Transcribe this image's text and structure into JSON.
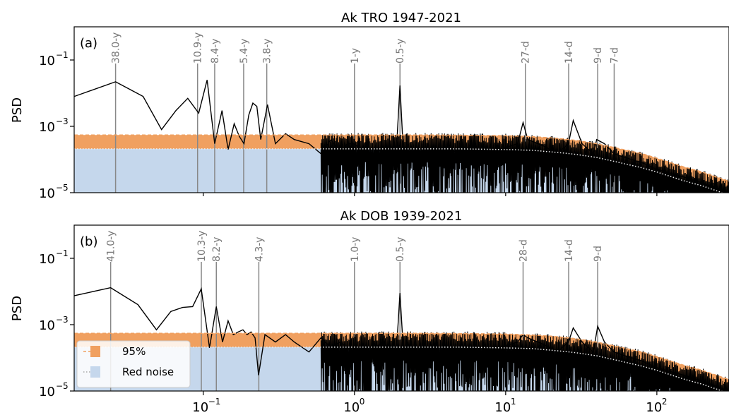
{
  "chart_data": [
    {
      "type": "line",
      "panel_label": "(a)",
      "title": "Ak TRO 1947-2021",
      "ylabel": "PSD",
      "xscale": "log",
      "yscale": "log",
      "xlim": [
        0.014,
        300
      ],
      "ylim": [
        1e-05,
        1
      ],
      "y_ticks": [
        {
          "value": 0.1,
          "label": "10",
          "exp": "−1"
        },
        {
          "value": 0.001,
          "label": "10",
          "exp": "−3"
        },
        {
          "value": 1e-05,
          "label": "10",
          "exp": "−5"
        }
      ],
      "series": [
        {
          "role": "spectrum",
          "color": "#000000",
          "x": [
            0.0135,
            0.0263,
            0.04,
            0.053,
            0.066,
            0.079,
            0.0933,
            0.106,
            0.119,
            0.133,
            0.146,
            0.16,
            0.173,
            0.186,
            0.2,
            0.213,
            0.226,
            0.24,
            0.266,
            0.3,
            0.35,
            0.4,
            0.5,
            0.6,
            0.7,
            0.8,
            0.9,
            1.0,
            1.2,
            1.5,
            1.9,
            2.0,
            2.1,
            2.5,
            3.0,
            4.0,
            5.0,
            7.0,
            9.0,
            12.0,
            13.04,
            14.0,
            18.0,
            22.0,
            26.0,
            28.0,
            32.0,
            38.0,
            40.0,
            45.0,
            52.0,
            60.0,
            80.0,
            100.0,
            150.0,
            200.0,
            300.0
          ],
          "y": [
            0.0075,
            0.022,
            0.008,
            0.0008,
            0.003,
            0.007,
            0.0025,
            0.025,
            0.0003,
            0.003,
            0.0002,
            0.0012,
            0.0005,
            0.0003,
            0.0022,
            0.005,
            0.004,
            0.0004,
            0.0045,
            0.0003,
            0.0006,
            0.0004,
            0.0003,
            0.00015,
            0.0004,
            0.00015,
            0.0003,
            0.0003,
            0.00012,
            0.0002,
            0.00025,
            0.017,
            0.0002,
            0.00015,
            0.0002,
            0.00015,
            0.0002,
            0.00012,
            0.0002,
            0.0003,
            0.0013,
            0.0004,
            0.00025,
            0.00015,
            0.0003,
            0.0015,
            0.0003,
            0.00015,
            0.0004,
            0.0003,
            0.00015,
            0.00012,
            8e-05,
            5e-05,
            3e-05,
            2e-05,
            1e-05
          ]
        },
        {
          "name": "95%",
          "color": "#f0a060",
          "x": [
            0.014,
            1,
            3,
            5,
            10,
            15,
            20,
            25,
            30,
            40,
            50,
            60,
            80,
            100,
            150,
            200,
            300
          ],
          "y": [
            0.00055,
            0.00055,
            0.00055,
            0.00054,
            0.00052,
            0.00049,
            0.00045,
            0.00041,
            0.00037,
            0.0003,
            0.00024,
            0.0002,
            0.00015,
            0.00011,
            6e-05,
            4.2e-05,
            2.2e-05
          ]
        },
        {
          "name": "Red noise",
          "color": "#c5d7ec",
          "x": [
            0.014,
            1,
            3,
            5,
            10,
            15,
            20,
            25,
            30,
            40,
            50,
            60,
            80,
            100,
            150,
            200,
            300
          ],
          "y": [
            0.00021,
            0.00021,
            0.00021,
            0.00021,
            0.0002,
            0.00019,
            0.00017,
            0.000155,
            0.00014,
            0.000115,
            9.2e-05,
            7.6e-05,
            5.6e-05,
            4.2e-05,
            2.3e-05,
            1.6e-05,
            8.5e-06
          ]
        }
      ],
      "period_markers": [
        {
          "label": "38.0-y",
          "x": 0.0263
        },
        {
          "label": "10.9-y",
          "x": 0.0917
        },
        {
          "label": "8.4-y",
          "x": 0.119
        },
        {
          "label": "5.4-y",
          "x": 0.185
        },
        {
          "label": "3.8-y",
          "x": 0.263
        },
        {
          "label": "1-y",
          "x": 1.0
        },
        {
          "label": "0.5-y",
          "x": 2.0
        },
        {
          "label": "27-d",
          "x": 13.5
        },
        {
          "label": "14-d",
          "x": 26.1
        },
        {
          "label": "9-d",
          "x": 40.6
        },
        {
          "label": "7-d",
          "x": 52.2
        }
      ]
    },
    {
      "type": "line",
      "panel_label": "(b)",
      "title": "Ak DOB 1939-2021",
      "ylabel": "PSD",
      "xscale": "log",
      "yscale": "log",
      "xlim": [
        0.014,
        300
      ],
      "ylim": [
        1e-05,
        1
      ],
      "y_ticks": [
        {
          "value": 0.1,
          "label": "10",
          "exp": "−1"
        },
        {
          "value": 0.001,
          "label": "10",
          "exp": "−3"
        },
        {
          "value": 1e-05,
          "label": "10",
          "exp": "−5"
        }
      ],
      "x_ticks": [
        {
          "value": 0.1,
          "label": "10",
          "exp": "−1"
        },
        {
          "value": 1,
          "label": "10",
          "exp": "0"
        },
        {
          "value": 10,
          "label": "10",
          "exp": "1"
        },
        {
          "value": 100,
          "label": "10",
          "exp": "2"
        }
      ],
      "series": [
        {
          "role": "spectrum",
          "color": "#000000",
          "x": [
            0.0122,
            0.0244,
            0.037,
            0.049,
            0.061,
            0.073,
            0.085,
            0.097,
            0.11,
            0.122,
            0.134,
            0.146,
            0.158,
            0.17,
            0.183,
            0.195,
            0.207,
            0.22,
            0.232,
            0.256,
            0.3,
            0.35,
            0.4,
            0.5,
            0.6,
            0.7,
            0.8,
            0.9,
            1.0,
            1.2,
            1.5,
            1.9,
            2.0,
            2.1,
            2.5,
            3.0,
            4.0,
            5.0,
            7.0,
            9.0,
            12.0,
            13.04,
            14.0,
            18.0,
            22.0,
            26.0,
            28.0,
            32.0,
            38.0,
            40.6,
            45.0,
            52.0,
            60.0,
            80.0,
            100.0,
            150.0,
            200.0,
            300.0
          ],
          "y": [
            0.0065,
            0.013,
            0.004,
            0.0007,
            0.0025,
            0.0033,
            0.0035,
            0.012,
            0.0002,
            0.0035,
            0.0003,
            0.0013,
            0.0005,
            0.0006,
            0.0007,
            0.0005,
            0.0006,
            0.0004,
            3e-05,
            0.0005,
            0.0003,
            0.0005,
            0.0003,
            0.00015,
            0.0004,
            0.0002,
            0.0003,
            0.0002,
            0.00012,
            0.0002,
            0.00025,
            0.0002,
            0.009,
            0.0002,
            0.00015,
            0.0002,
            0.00015,
            0.0002,
            0.00012,
            0.0002,
            0.0003,
            0.0005,
            0.0004,
            0.00025,
            0.00015,
            0.0003,
            0.0008,
            0.0003,
            0.00015,
            0.0009,
            0.0003,
            0.00015,
            0.00012,
            8e-05,
            5e-05,
            3e-05,
            2e-05,
            1e-05
          ]
        },
        {
          "name": "95%",
          "color": "#f0a060",
          "x": [
            0.014,
            1,
            3,
            5,
            10,
            15,
            20,
            25,
            30,
            40,
            50,
            60,
            80,
            100,
            150,
            200,
            300
          ],
          "y": [
            0.00055,
            0.00055,
            0.00055,
            0.00054,
            0.00052,
            0.00049,
            0.00045,
            0.00041,
            0.00037,
            0.0003,
            0.00024,
            0.0002,
            0.00015,
            0.00011,
            6e-05,
            4.2e-05,
            2.2e-05
          ]
        },
        {
          "name": "Red noise",
          "color": "#c5d7ec",
          "x": [
            0.014,
            1,
            3,
            5,
            10,
            15,
            20,
            25,
            30,
            40,
            50,
            60,
            80,
            100,
            150,
            200,
            300
          ],
          "y": [
            0.00021,
            0.00021,
            0.00021,
            0.00021,
            0.0002,
            0.00019,
            0.00017,
            0.000155,
            0.00014,
            0.000115,
            9.2e-05,
            7.6e-05,
            5.6e-05,
            4.2e-05,
            2.3e-05,
            1.6e-05,
            8.5e-06
          ]
        }
      ],
      "period_markers": [
        {
          "label": "41.0-y",
          "x": 0.0244
        },
        {
          "label": "10.3-y",
          "x": 0.0971
        },
        {
          "label": "8.2-y",
          "x": 0.122
        },
        {
          "label": "4.3-y",
          "x": 0.233
        },
        {
          "label": "1.0-y",
          "x": 1.0
        },
        {
          "label": "0.5-y",
          "x": 2.0
        },
        {
          "label": "28-d",
          "x": 13.04
        },
        {
          "label": "14-d",
          "x": 26.1
        },
        {
          "label": "9-d",
          "x": 40.6
        }
      ],
      "legend": {
        "position": "lower-left",
        "items": [
          "95%",
          "Red noise"
        ]
      }
    }
  ]
}
